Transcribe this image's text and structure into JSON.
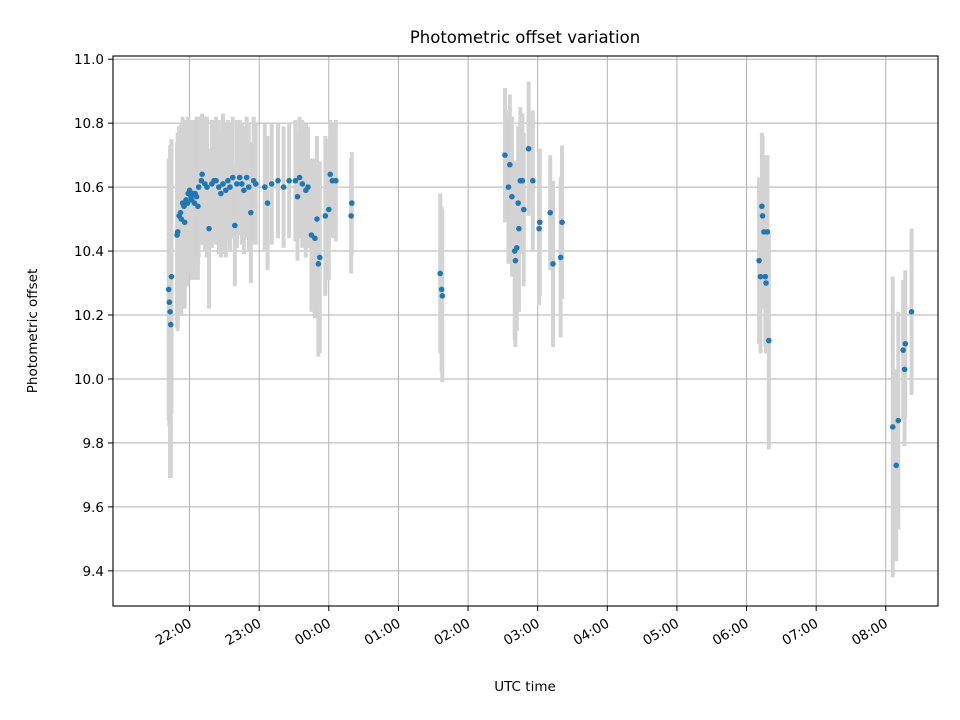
{
  "chart_data": {
    "type": "scatter",
    "title": "Photometric offset variation",
    "xlabel": "UTC time",
    "ylabel": "Photometric offset",
    "x_axis": "time (UTC, hours since 21:00)",
    "xlim": [
      -0.1,
      11.75
    ],
    "ylim": [
      9.29,
      11.01
    ],
    "xtick_labels": [
      "22:00",
      "23:00",
      "00:00",
      "01:00",
      "02:00",
      "03:00",
      "04:00",
      "05:00",
      "06:00",
      "07:00",
      "08:00"
    ],
    "ytick_labels": [
      "9.4",
      "9.6",
      "9.8",
      "10.0",
      "10.2",
      "10.4",
      "10.6",
      "10.8",
      "11.0"
    ],
    "grid": true,
    "colors": {
      "points": "#1f77b4",
      "error_bars": "#d3d3d3",
      "grid": "#b0b0b0"
    },
    "series": [
      {
        "points": [
          {
            "x": 21.7,
            "y": 10.28,
            "err": 0.41
          },
          {
            "x": 21.71,
            "y": 10.24,
            "err": 0.39
          },
          {
            "x": 21.72,
            "y": 10.21,
            "err": 0.52
          },
          {
            "x": 21.73,
            "y": 10.17,
            "err": 0.48
          },
          {
            "x": 21.74,
            "y": 10.32,
            "err": 0.43
          },
          {
            "x": 21.82,
            "y": 10.45,
            "err": 0.29
          },
          {
            "x": 21.83,
            "y": 10.46,
            "err": 0.31
          },
          {
            "x": 21.85,
            "y": 10.51,
            "err": 0.28
          },
          {
            "x": 21.87,
            "y": 10.52,
            "err": 0.25
          },
          {
            "x": 21.88,
            "y": 10.5,
            "err": 0.3
          },
          {
            "x": 21.9,
            "y": 10.55,
            "err": 0.27
          },
          {
            "x": 21.92,
            "y": 10.54,
            "err": 0.26
          },
          {
            "x": 21.93,
            "y": 10.49,
            "err": 0.27
          },
          {
            "x": 21.95,
            "y": 10.56,
            "err": 0.25
          },
          {
            "x": 21.97,
            "y": 10.55,
            "err": 0.26
          },
          {
            "x": 21.98,
            "y": 10.58,
            "err": 0.24
          },
          {
            "x": 22.0,
            "y": 10.59,
            "err": 0.22
          },
          {
            "x": 22.02,
            "y": 10.57,
            "err": 0.24
          },
          {
            "x": 22.03,
            "y": 10.56,
            "err": 0.25
          },
          {
            "x": 22.05,
            "y": 10.58,
            "err": 0.23
          },
          {
            "x": 22.07,
            "y": 10.55,
            "err": 0.24
          },
          {
            "x": 22.08,
            "y": 10.58,
            "err": 0.22
          },
          {
            "x": 22.1,
            "y": 10.57,
            "err": 0.25
          },
          {
            "x": 22.12,
            "y": 10.54,
            "err": 0.23
          },
          {
            "x": 22.13,
            "y": 10.6,
            "err": 0.22
          },
          {
            "x": 22.17,
            "y": 10.62,
            "err": 0.2
          },
          {
            "x": 22.18,
            "y": 10.64,
            "err": 0.19
          },
          {
            "x": 22.22,
            "y": 10.61,
            "err": 0.21
          },
          {
            "x": 22.25,
            "y": 10.6,
            "err": 0.22
          },
          {
            "x": 22.28,
            "y": 10.47,
            "err": 0.25
          },
          {
            "x": 22.32,
            "y": 10.61,
            "err": 0.2
          },
          {
            "x": 22.35,
            "y": 10.62,
            "err": 0.19
          },
          {
            "x": 22.38,
            "y": 10.62,
            "err": 0.2
          },
          {
            "x": 22.42,
            "y": 10.6,
            "err": 0.21
          },
          {
            "x": 22.45,
            "y": 10.58,
            "err": 0.2
          },
          {
            "x": 22.48,
            "y": 10.61,
            "err": 0.22
          },
          {
            "x": 22.52,
            "y": 10.59,
            "err": 0.21
          },
          {
            "x": 22.55,
            "y": 10.62,
            "err": 0.19
          },
          {
            "x": 22.58,
            "y": 10.6,
            "err": 0.2
          },
          {
            "x": 22.62,
            "y": 10.63,
            "err": 0.19
          },
          {
            "x": 22.65,
            "y": 10.48,
            "err": 0.19
          },
          {
            "x": 22.68,
            "y": 10.61,
            "err": 0.2
          },
          {
            "x": 22.72,
            "y": 10.63,
            "err": 0.18
          },
          {
            "x": 22.75,
            "y": 10.61,
            "err": 0.19
          },
          {
            "x": 22.78,
            "y": 10.59,
            "err": 0.2
          },
          {
            "x": 22.82,
            "y": 10.63,
            "err": 0.19
          },
          {
            "x": 22.85,
            "y": 10.6,
            "err": 0.2
          },
          {
            "x": 22.88,
            "y": 10.52,
            "err": 0.22
          },
          {
            "x": 22.92,
            "y": 10.62,
            "err": 0.2
          },
          {
            "x": 22.95,
            "y": 10.61,
            "err": 0.19
          },
          {
            "x": 23.08,
            "y": 10.6,
            "err": 0.2
          },
          {
            "x": 23.12,
            "y": 10.55,
            "err": 0.21
          },
          {
            "x": 23.18,
            "y": 10.61,
            "err": 0.19
          },
          {
            "x": 23.27,
            "y": 10.62,
            "err": 0.18
          },
          {
            "x": 23.35,
            "y": 10.6,
            "err": 0.19
          },
          {
            "x": 23.43,
            "y": 10.62,
            "err": 0.18
          },
          {
            "x": 23.52,
            "y": 10.62,
            "err": 0.19
          },
          {
            "x": 23.55,
            "y": 10.57,
            "err": 0.2
          },
          {
            "x": 23.58,
            "y": 10.63,
            "err": 0.19
          },
          {
            "x": 23.62,
            "y": 10.61,
            "err": 0.2
          },
          {
            "x": 23.67,
            "y": 10.59,
            "err": 0.21
          },
          {
            "x": 23.7,
            "y": 10.6,
            "err": 0.19
          },
          {
            "x": 23.75,
            "y": 10.45,
            "err": 0.24
          },
          {
            "x": 23.8,
            "y": 10.44,
            "err": 0.25
          },
          {
            "x": 23.83,
            "y": 10.5,
            "err": 0.26
          },
          {
            "x": 23.85,
            "y": 10.36,
            "err": 0.29
          },
          {
            "x": 23.87,
            "y": 10.38,
            "err": 0.3
          },
          {
            "x": 23.95,
            "y": 10.51,
            "err": 0.25
          },
          {
            "x": 24.0,
            "y": 10.53,
            "err": 0.22
          },
          {
            "x": 24.02,
            "y": 10.64,
            "err": 0.17
          },
          {
            "x": 24.05,
            "y": 10.62,
            "err": 0.18
          },
          {
            "x": 24.1,
            "y": 10.62,
            "err": 0.19
          },
          {
            "x": 24.32,
            "y": 10.51,
            "err": 0.18
          },
          {
            "x": 24.33,
            "y": 10.55,
            "err": 0.16
          },
          {
            "x": 25.6,
            "y": 10.33,
            "err": 0.25
          },
          {
            "x": 25.62,
            "y": 10.28,
            "err": 0.26
          },
          {
            "x": 25.63,
            "y": 10.26,
            "err": 0.27
          },
          {
            "x": 26.53,
            "y": 10.7,
            "err": 0.21
          },
          {
            "x": 26.58,
            "y": 10.6,
            "err": 0.24
          },
          {
            "x": 26.6,
            "y": 10.67,
            "err": 0.22
          },
          {
            "x": 26.63,
            "y": 10.57,
            "err": 0.25
          },
          {
            "x": 26.67,
            "y": 10.4,
            "err": 0.28
          },
          {
            "x": 26.68,
            "y": 10.37,
            "err": 0.27
          },
          {
            "x": 26.7,
            "y": 10.41,
            "err": 0.26
          },
          {
            "x": 26.72,
            "y": 10.55,
            "err": 0.24
          },
          {
            "x": 26.73,
            "y": 10.47,
            "err": 0.26
          },
          {
            "x": 26.75,
            "y": 10.62,
            "err": 0.23
          },
          {
            "x": 26.78,
            "y": 10.62,
            "err": 0.21
          },
          {
            "x": 26.8,
            "y": 10.53,
            "err": 0.24
          },
          {
            "x": 26.87,
            "y": 10.72,
            "err": 0.21
          },
          {
            "x": 26.93,
            "y": 10.62,
            "err": 0.22
          },
          {
            "x": 27.02,
            "y": 10.47,
            "err": 0.24
          },
          {
            "x": 27.03,
            "y": 10.49,
            "err": 0.23
          },
          {
            "x": 27.18,
            "y": 10.52,
            "err": 0.18
          },
          {
            "x": 27.22,
            "y": 10.36,
            "err": 0.26
          },
          {
            "x": 27.33,
            "y": 10.38,
            "err": 0.25
          },
          {
            "x": 27.35,
            "y": 10.49,
            "err": 0.24
          },
          {
            "x": 30.18,
            "y": 10.37,
            "err": 0.26
          },
          {
            "x": 30.2,
            "y": 10.32,
            "err": 0.24
          },
          {
            "x": 30.22,
            "y": 10.54,
            "err": 0.23
          },
          {
            "x": 30.23,
            "y": 10.51,
            "err": 0.25
          },
          {
            "x": 30.25,
            "y": 10.46,
            "err": 0.24
          },
          {
            "x": 30.27,
            "y": 10.32,
            "err": 0.22
          },
          {
            "x": 30.28,
            "y": 10.3,
            "err": 0.22
          },
          {
            "x": 30.3,
            "y": 10.46,
            "err": 0.24
          },
          {
            "x": 30.32,
            "y": 10.12,
            "err": 0.34
          },
          {
            "x": 32.1,
            "y": 9.85,
            "err": 0.47
          },
          {
            "x": 32.15,
            "y": 9.73,
            "err": 0.3
          },
          {
            "x": 32.18,
            "y": 9.87,
            "err": 0.34
          },
          {
            "x": 32.25,
            "y": 10.09,
            "err": 0.22
          },
          {
            "x": 32.27,
            "y": 10.03,
            "err": 0.24
          },
          {
            "x": 32.28,
            "y": 10.11,
            "err": 0.23
          },
          {
            "x": 32.37,
            "y": 10.21,
            "err": 0.26
          }
        ]
      }
    ]
  }
}
